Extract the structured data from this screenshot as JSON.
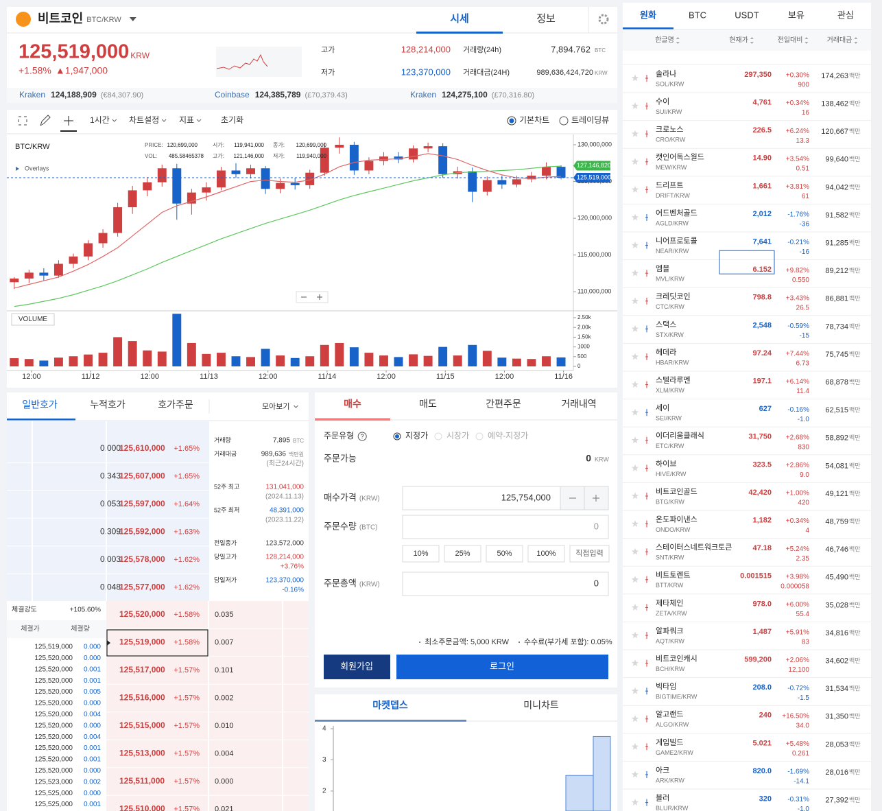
{
  "header": {
    "coin_name": "비트코인",
    "pair": "BTC/KRW",
    "tabs": [
      "시세",
      "정보"
    ]
  },
  "ticker": {
    "price": "125,519,000",
    "currency": "KRW",
    "change_rate": "+1.58%",
    "change": "▲1,947,000",
    "stats": [
      {
        "label": "고가",
        "value": "128,214,000"
      },
      {
        "label": "저가",
        "value": "123,370,000"
      },
      {
        "label": "거래량(24h)",
        "value": "7,894.762",
        "unit": "BTC"
      },
      {
        "label": "거래대금(24H)",
        "value": "989,636,424,720",
        "unit": "KRW"
      }
    ]
  },
  "exchanges": [
    {
      "name": "Kraken",
      "price": "124,188,909",
      "sub": "(€84,307.90)"
    },
    {
      "name": "Coinbase",
      "price": "124,385,789",
      "sub": "(£70,379.43)"
    },
    {
      "name": "Kraken",
      "price": "124,275,100",
      "sub": "(£70,316.80)"
    }
  ],
  "toolbar": {
    "menus": [
      "1시간",
      "차트설정",
      "지표"
    ],
    "reset": "초기화",
    "views": [
      "기본차트",
      "트레이딩뷰"
    ]
  },
  "chart_data": {
    "type": "candlestick",
    "title": "BTC/KRW",
    "overlay_label": "Overlays",
    "info": [
      {
        "label": "PRICE:",
        "value": "120,699,000"
      },
      {
        "label": "VOL:",
        "value": "485.58465378"
      },
      {
        "label": "시가:",
        "value": "119,941,000"
      },
      {
        "label": "고가:",
        "value": "121,146,000"
      },
      {
        "label": "종가:",
        "value": "120,699,000"
      },
      {
        "label": "저가:",
        "value": "119,940,000"
      }
    ],
    "up_color": "#cf3f3f",
    "down_color": "#1763c9",
    "xlim": [
      0,
      115
    ],
    "xticks": [
      {
        "value": 5,
        "label": "12:00"
      },
      {
        "value": 17,
        "label": "11/12"
      },
      {
        "value": 29,
        "label": "12:00"
      },
      {
        "value": 41,
        "label": "11/13"
      },
      {
        "value": 53,
        "label": "12:00"
      },
      {
        "value": 65,
        "label": "11/14"
      },
      {
        "value": 77,
        "label": "12:00"
      },
      {
        "value": 89,
        "label": "11/15"
      },
      {
        "value": 101,
        "label": "12:00"
      },
      {
        "value": 113,
        "label": "11/16"
      }
    ],
    "ylim": [
      107500000,
      131400000
    ],
    "yticks": [
      {
        "value": 110000000,
        "label": "110,000,000"
      },
      {
        "value": 115000000,
        "label": "115,000,000"
      },
      {
        "value": 120000000,
        "label": "120,000,000"
      },
      {
        "value": 125000000,
        "label": "125,000,000"
      },
      {
        "value": 130000000,
        "label": "130,000,000"
      }
    ],
    "x": [
      1.5,
      4.5,
      7.5,
      10.5,
      13.5,
      16.5,
      19.5,
      22.5,
      25.5,
      28.5,
      31.5,
      34.5,
      37.5,
      40.5,
      43.5,
      46.5,
      49.5,
      52.5,
      55.5,
      58.5,
      61.5,
      64.5,
      67.5,
      70.5,
      73.5,
      76.5,
      79.5,
      82.5,
      85.5,
      88.5,
      91.5,
      94.5,
      97.5,
      100.5,
      103.5,
      106.5,
      109.5,
      112.5
    ],
    "candles": [
      [
        111300000,
        112000000,
        110400000,
        111800000
      ],
      [
        111800000,
        113000000,
        111200000,
        112600000
      ],
      [
        112600000,
        113200000,
        111500000,
        112200000
      ],
      [
        112200000,
        114300000,
        111900000,
        113800000
      ],
      [
        113800000,
        115200000,
        113200000,
        114800000
      ],
      [
        114800000,
        117000000,
        114300000,
        116600000
      ],
      [
        116600000,
        118500000,
        116000000,
        118000000
      ],
      [
        118000000,
        122100000,
        117500000,
        121500000
      ],
      [
        121500000,
        124400000,
        120600000,
        123800000
      ],
      [
        123800000,
        125600000,
        123000000,
        124900000
      ],
      [
        124900000,
        127300000,
        124300000,
        126800000
      ],
      [
        126800000,
        127400000,
        119800000,
        122000000
      ],
      [
        122000000,
        124000000,
        120500000,
        123500000
      ],
      [
        123500000,
        124900000,
        122400000,
        124200000
      ],
      [
        124200000,
        127000000,
        123800000,
        126500000
      ],
      [
        126500000,
        127500000,
        125500000,
        126000000
      ],
      [
        126000000,
        127300000,
        125400000,
        126800000
      ],
      [
        126800000,
        127100000,
        123300000,
        124000000
      ],
      [
        124000000,
        125400000,
        123400000,
        124800000
      ],
      [
        124800000,
        125500000,
        123900000,
        124500000
      ],
      [
        124500000,
        126600000,
        124000000,
        126200000
      ],
      [
        126200000,
        130300000,
        125800000,
        129600000
      ],
      [
        129600000,
        131000000,
        128800000,
        130000000
      ],
      [
        130000000,
        130400000,
        125900000,
        126500000
      ],
      [
        126500000,
        128300000,
        126000000,
        127800000
      ],
      [
        127800000,
        129000000,
        127200000,
        128400000
      ],
      [
        128400000,
        129000000,
        127500000,
        128000000
      ],
      [
        128000000,
        129900000,
        127600000,
        129500000
      ],
      [
        129500000,
        130300000,
        129000000,
        129800000
      ],
      [
        129800000,
        130200000,
        125500000,
        126000000
      ],
      [
        126000000,
        127000000,
        125400000,
        126400000
      ],
      [
        126400000,
        126900000,
        122200000,
        123600000
      ],
      [
        123600000,
        125700000,
        123100000,
        125200000
      ],
      [
        125200000,
        125800000,
        124000000,
        124600000
      ],
      [
        124600000,
        125800000,
        124200000,
        125300000
      ],
      [
        125300000,
        126300000,
        124900000,
        125800000
      ],
      [
        125800000,
        127600000,
        125300000,
        127000000
      ],
      [
        127000000,
        127200000,
        125300000,
        125519000
      ]
    ],
    "ma_lines": [
      {
        "color": "#e06666",
        "values": [
          110500000,
          111000000,
          111500000,
          112000000,
          112800000,
          113700000,
          114800000,
          116000000,
          117600000,
          119200000,
          120800000,
          121700000,
          122300000,
          122900000,
          123600000,
          124300000,
          125000000,
          125200000,
          125000000,
          124900000,
          125200000,
          126000000,
          127000000,
          127600000,
          127900000,
          128000000,
          128100000,
          128400000,
          128800000,
          128500000,
          128000000,
          127200000,
          126500000,
          125900000,
          125500000,
          125400000,
          125600000,
          125700000
        ]
      },
      {
        "color": "#5cc85c",
        "values": [
          108000000,
          108300000,
          108700000,
          109100000,
          109600000,
          110200000,
          110800000,
          111500000,
          112300000,
          113100000,
          114000000,
          114800000,
          115600000,
          116400000,
          117200000,
          117900000,
          118600000,
          119300000,
          119900000,
          120500000,
          121100000,
          121800000,
          122500000,
          123100000,
          123600000,
          124100000,
          124600000,
          125100000,
          125500000,
          125900000,
          126200000,
          126300000,
          126400000,
          126500000,
          126600000,
          126800000,
          127000000,
          127100000
        ]
      }
    ],
    "price_tags": [
      {
        "value": 127146820,
        "label": "127,146,820",
        "color": "#3cb64a"
      },
      {
        "value": 125519000,
        "label": "125,519,000",
        "color": "#1763c9"
      }
    ],
    "volume": {
      "title": "VOLUME",
      "ylim": [
        0,
        2800
      ],
      "yticks": [
        {
          "value": 2500,
          "label": "2.50k"
        },
        {
          "value": 2000,
          "label": "2.00k"
        },
        {
          "value": 1500,
          "label": "1.50k"
        },
        1000,
        500,
        0
      ],
      "values": [
        420,
        380,
        300,
        450,
        520,
        610,
        700,
        1500,
        1300,
        820,
        760,
        2700,
        1200,
        640,
        700,
        520,
        480,
        900,
        560,
        430,
        520,
        1100,
        1200,
        980,
        700,
        560,
        480,
        620,
        540,
        1000,
        560,
        1100,
        800,
        450,
        400,
        380,
        520,
        460
      ]
    }
  },
  "orderbook": {
    "tabs": [
      "일반호가",
      "누적호가",
      "호가주문"
    ],
    "group": "모아보기",
    "asks": [
      {
        "qty": "0.000",
        "price": "125,610,000",
        "rate": "+1.65%"
      },
      {
        "qty": "0.343",
        "price": "125,607,000",
        "rate": "+1.65%"
      },
      {
        "qty": "0.053",
        "price": "125,597,000",
        "rate": "+1.64%"
      },
      {
        "qty": "0.309",
        "price": "125,592,000",
        "rate": "+1.63%"
      },
      {
        "qty": "0.003",
        "price": "125,578,000",
        "rate": "+1.62%"
      },
      {
        "qty": "0.048",
        "price": "125,577,000",
        "rate": "+1.62%"
      }
    ],
    "bids": [
      {
        "price": "125,520,000",
        "rate": "+1.58%",
        "qty": "0.035"
      },
      {
        "price": "125,519,000",
        "rate": "+1.58%",
        "qty": "0.007"
      },
      {
        "price": "125,517,000",
        "rate": "+1.57%",
        "qty": "0.101"
      },
      {
        "price": "125,516,000",
        "rate": "+1.57%",
        "qty": "0.002"
      },
      {
        "price": "125,515,000",
        "rate": "+1.57%",
        "qty": "0.010"
      },
      {
        "price": "125,513,000",
        "rate": "+1.57%",
        "qty": "0.004"
      },
      {
        "price": "125,511,000",
        "rate": "+1.57%",
        "qty": "0.000"
      },
      {
        "price": "125,510,000",
        "rate": "+1.57%",
        "qty": "0.021"
      }
    ],
    "info": [
      {
        "label": "거래량",
        "value": "7,895",
        "unit": "BTC"
      },
      {
        "label": "거래대금",
        "value": "989,636",
        "unit": "백만원",
        "note": "(최근24시간)"
      },
      {
        "label": "52주 최고",
        "value": "131,041,000",
        "note": "(2024.11.13)"
      },
      {
        "label": "52주 최저",
        "value": "48,391,000",
        "note": "(2023.11.22)"
      },
      {
        "label": "전일종가",
        "value": "123,572,000"
      },
      {
        "label": "당일고가",
        "value": "128,214,000",
        "note": "+3.76%"
      },
      {
        "label": "당일저가",
        "value": "123,370,000",
        "note": "-0.16%"
      }
    ],
    "strength": {
      "label": "체결강도",
      "value": "+105.60%"
    },
    "trade_headers": [
      "체결가",
      "체결량"
    ],
    "trades": [
      [
        "125,519,000",
        "0.000"
      ],
      [
        "125,520,000",
        "0.000"
      ],
      [
        "125,520,000",
        "0.001"
      ],
      [
        "125,520,000",
        "0.001"
      ],
      [
        "125,520,000",
        "0.005"
      ],
      [
        "125,520,000",
        "0.000"
      ],
      [
        "125,520,000",
        "0.004"
      ],
      [
        "125,520,000",
        "0.000"
      ],
      [
        "125,520,000",
        "0.004"
      ],
      [
        "125,520,000",
        "0.001"
      ],
      [
        "125,520,000",
        "0.001"
      ],
      [
        "125,520,000",
        "0.000"
      ],
      [
        "125,523,000",
        "0.002"
      ],
      [
        "125,525,000",
        "0.000"
      ],
      [
        "125,525,000",
        "0.001"
      ]
    ]
  },
  "order": {
    "tabs": [
      "매수",
      "매도",
      "간편주문",
      "거래내역"
    ],
    "type_label": "주문유형",
    "help": "?",
    "order_types": [
      "지정가",
      "시장가",
      "예약-지정가"
    ],
    "available_label": "주문가능",
    "available": "0",
    "available_unit": "KRW",
    "price_label": "매수가격",
    "price_unit": "(KRW)",
    "price": "125,754,000",
    "qty_label": "주문수량",
    "qty_unit": "(BTC)",
    "qty": "0",
    "pct": [
      "10%",
      "25%",
      "50%",
      "100%",
      "직접입력"
    ],
    "total_label": "주문총액",
    "total_unit": "(KRW)",
    "total": "0",
    "notes": [
      "최소주문금액: 5,000 KRW",
      "수수료(부가세 포함): 0.05%"
    ],
    "buttons": [
      "회원가입",
      "로그인"
    ]
  },
  "depth": {
    "tabs": [
      "마켓뎁스",
      "미니차트"
    ],
    "ylim": [
      1.36,
      4.09
    ],
    "yticks": [
      4,
      3,
      2
    ],
    "steps": [
      2.5,
      3.75
    ]
  },
  "market": {
    "tabs": [
      "원화",
      "BTC",
      "USDT",
      "보유",
      "관심"
    ],
    "headers": [
      "한글명",
      "현재가",
      "전일대비",
      "거래대금"
    ],
    "unit": "백만",
    "rows": [
      {
        "name": "솔라나",
        "symbol": "SOL/KRW",
        "price": "297,350",
        "rate": "+0.30%",
        "change": "900",
        "volume": "174,263"
      },
      {
        "name": "수이",
        "symbol": "SUI/KRW",
        "price": "4,761",
        "rate": "+0.34%",
        "change": "16",
        "volume": "138,462"
      },
      {
        "name": "크로노스",
        "symbol": "CRO/KRW",
        "price": "226.5",
        "rate": "+6.24%",
        "change": "13.3",
        "volume": "120,667"
      },
      {
        "name": "캣인어독스월드",
        "symbol": "MEW/KRW",
        "price": "14.90",
        "rate": "+3.54%",
        "change": "0.51",
        "volume": "99,640"
      },
      {
        "name": "드리프트",
        "symbol": "DRIFT/KRW",
        "price": "1,661",
        "rate": "+3.81%",
        "change": "61",
        "volume": "94,042"
      },
      {
        "name": "어드벤처골드",
        "symbol": "AGLD/KRW",
        "price": "2,012",
        "rate": "-1.76%",
        "change": "-36",
        "volume": "91,582"
      },
      {
        "name": "니어프로토콜",
        "symbol": "NEAR/KRW",
        "price": "7,641",
        "rate": "-0.21%",
        "change": "-16",
        "volume": "91,285"
      },
      {
        "name": "엠블",
        "symbol": "MVL/KRW",
        "price": "6.152",
        "rate": "+9.82%",
        "change": "0.550",
        "volume": "89,212"
      },
      {
        "name": "크레딧코인",
        "symbol": "CTC/KRW",
        "price": "798.8",
        "rate": "+3.43%",
        "change": "26.5",
        "volume": "86,881"
      },
      {
        "name": "스택스",
        "symbol": "STX/KRW",
        "price": "2,548",
        "rate": "-0.59%",
        "change": "-15",
        "volume": "78,734"
      },
      {
        "name": "헤데라",
        "symbol": "HBAR/KRW",
        "price": "97.24",
        "rate": "+7.44%",
        "change": "6.73",
        "volume": "75,745"
      },
      {
        "name": "스텔라루멘",
        "symbol": "XLM/KRW",
        "price": "197.1",
        "rate": "+6.14%",
        "change": "11.4",
        "volume": "68,878"
      },
      {
        "name": "세이",
        "symbol": "SEI/KRW",
        "price": "627",
        "rate": "-0.16%",
        "change": "-1.0",
        "volume": "62,515"
      },
      {
        "name": "이더리움클래식",
        "symbol": "ETC/KRW",
        "price": "31,750",
        "rate": "+2.68%",
        "change": "830",
        "volume": "58,892"
      },
      {
        "name": "하이브",
        "symbol": "HIVE/KRW",
        "price": "323.5",
        "rate": "+2.86%",
        "change": "9.0",
        "volume": "54,081"
      },
      {
        "name": "비트코인골드",
        "symbol": "BTG/KRW",
        "price": "42,420",
        "rate": "+1.00%",
        "change": "420",
        "volume": "49,121"
      },
      {
        "name": "온도파이낸스",
        "symbol": "ONDO/KRW",
        "price": "1,182",
        "rate": "+0.34%",
        "change": "4",
        "volume": "48,759"
      },
      {
        "name": "스테이터스네트워크토큰",
        "symbol": "SNT/KRW",
        "price": "47.18",
        "rate": "+5.24%",
        "change": "2.35",
        "volume": "46,746"
      },
      {
        "name": "비트토렌트",
        "symbol": "BTT/KRW",
        "price": "0.001515",
        "rate": "+3.98%",
        "change": "0.000058",
        "volume": "45,490"
      },
      {
        "name": "제타체인",
        "symbol": "ZETA/KRW",
        "price": "978.0",
        "rate": "+6.00%",
        "change": "55.4",
        "volume": "35,028"
      },
      {
        "name": "알파쿼크",
        "symbol": "AQT/KRW",
        "price": "1,487",
        "rate": "+5.91%",
        "change": "83",
        "volume": "34,816"
      },
      {
        "name": "비트코인캐시",
        "symbol": "BCH/KRW",
        "price": "599,200",
        "rate": "+2.06%",
        "change": "12,100",
        "volume": "34,602"
      },
      {
        "name": "빅타임",
        "symbol": "BIGTIME/KRW",
        "price": "208.0",
        "rate": "-0.72%",
        "change": "-1.5",
        "volume": "31,534"
      },
      {
        "name": "알고랜드",
        "symbol": "ALGO/KRW",
        "price": "240",
        "rate": "+16.50%",
        "change": "34.0",
        "volume": "31,350"
      },
      {
        "name": "게임빌드",
        "symbol": "GAME2/KRW",
        "price": "5.021",
        "rate": "+5.48%",
        "change": "0.261",
        "volume": "28,053"
      },
      {
        "name": "아크",
        "symbol": "ARK/KRW",
        "price": "820.0",
        "rate": "-1.69%",
        "change": "-14.1",
        "volume": "28,016"
      },
      {
        "name": "블러",
        "symbol": "BLUR/KRW",
        "price": "320",
        "rate": "-0.31%",
        "change": "-1.0",
        "volume": "27,392"
      }
    ]
  }
}
